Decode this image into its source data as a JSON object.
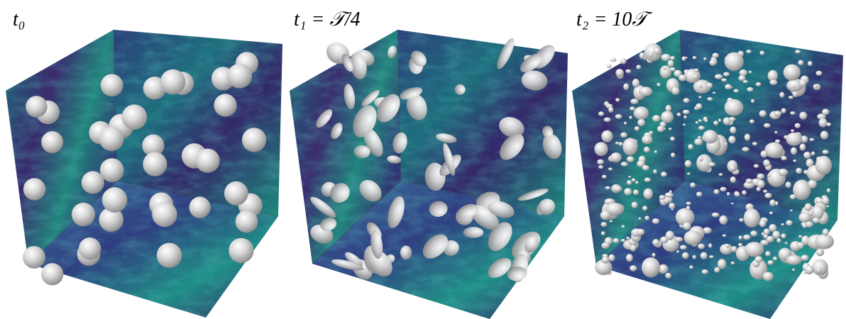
{
  "panels": [
    {
      "label": "t₀"
    },
    {
      "label": "t₁ = 𝒯/4"
    },
    {
      "label": "t₂ = 10𝒯"
    }
  ]
}
